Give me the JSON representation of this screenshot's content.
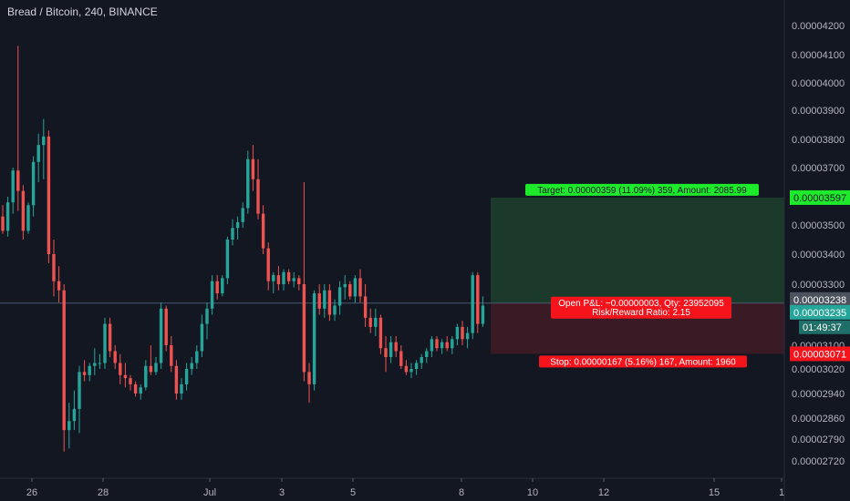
{
  "colors": {
    "background": "#131722",
    "up": "#26a69a",
    "down": "#ef5350",
    "target_zone": "#1b3a2b",
    "stop_zone": "#3a1b25",
    "target_label": "#1eea2c",
    "stop_label": "#f5141c",
    "current_price": "#26a69a",
    "entry_line": "#4a5a70"
  },
  "chart_data": {
    "type": "candlestick",
    "title": "Bread / Bitcoin, 240, BINANCE",
    "xlabel": "",
    "ylabel": "",
    "ylim": [
      2.68e-05,
      4.27e-05
    ],
    "yticks": [
      "0.00004200",
      "0.00004100",
      "0.00004000",
      "0.00003900",
      "0.00003800",
      "0.00003700",
      "0.00003600",
      "0.00003500",
      "0.00003400",
      "0.00003300",
      "0.00003100",
      "0.00003020",
      "0.00002940",
      "0.00002860",
      "0.00002790",
      "0.00002720"
    ],
    "xticks": [
      "26",
      "28",
      "Jul",
      "3",
      "5",
      "8",
      "10",
      "12",
      "15",
      "1"
    ],
    "candles": [
      [
        3.53e-05,
        3.57e-05,
        3.47e-05,
        3.48e-05
      ],
      [
        3.48e-05,
        3.6e-05,
        3.46e-05,
        3.58e-05
      ],
      [
        3.58e-05,
        3.7e-05,
        3.54e-05,
        3.69e-05
      ],
      [
        3.69e-05,
        4.13e-05,
        3.55e-05,
        3.62e-05
      ],
      [
        3.62e-05,
        3.64e-05,
        3.45e-05,
        3.48e-05
      ],
      [
        3.48e-05,
        3.58e-05,
        3.47e-05,
        3.57e-05
      ],
      [
        3.57e-05,
        3.74e-05,
        3.53e-05,
        3.72e-05
      ],
      [
        3.72e-05,
        3.82e-05,
        3.65e-05,
        3.78e-05
      ],
      [
        3.78e-05,
        3.87e-05,
        3.66e-05,
        3.81e-05
      ],
      [
        3.81e-05,
        3.83e-05,
        3.37e-05,
        3.4e-05
      ],
      [
        3.4e-05,
        3.45e-05,
        3.26e-05,
        3.31e-05
      ],
      [
        3.31e-05,
        3.36e-05,
        3.24e-05,
        3.28e-05
      ],
      [
        3.28e-05,
        3.3e-05,
        2.75e-05,
        2.82e-05
      ],
      [
        2.82e-05,
        2.91e-05,
        2.76e-05,
        2.85e-05
      ],
      [
        2.85e-05,
        2.95e-05,
        2.82e-05,
        2.89e-05
      ],
      [
        2.89e-05,
        3.03e-05,
        2.81e-05,
        3.01e-05
      ],
      [
        3.01e-05,
        3.05e-05,
        2.98e-05,
        3e-05
      ],
      [
        3e-05,
        3.04e-05,
        2.98e-05,
        3.03e-05
      ],
      [
        3.03e-05,
        3.09e-05,
        3e-05,
        3.04e-05
      ],
      [
        3.04e-05,
        3.07e-05,
        3.02e-05,
        3.04e-05
      ],
      [
        3.04e-05,
        3.19e-05,
        3.02e-05,
        3.17e-05
      ],
      [
        3.17e-05,
        3.19e-05,
        3.06e-05,
        3.08e-05
      ],
      [
        3.08e-05,
        3.1e-05,
        3.02e-05,
        3.04e-05
      ],
      [
        3.04e-05,
        3.07e-05,
        2.97e-05,
        3e-05
      ],
      [
        3e-05,
        3.04e-05,
        2.96e-05,
        2.99e-05
      ],
      [
        2.99e-05,
        3e-05,
        2.95e-05,
        2.97e-05
      ],
      [
        2.97e-05,
        2.98e-05,
        2.93e-05,
        2.94e-05
      ],
      [
        2.94e-05,
        2.97e-05,
        2.92e-05,
        2.96e-05
      ],
      [
        2.96e-05,
        3.05e-05,
        2.95e-05,
        3.03e-05
      ],
      [
        3.03e-05,
        3.1e-05,
        3e-05,
        3.01e-05
      ],
      [
        3.01e-05,
        3.06e-05,
        3e-05,
        3.04e-05
      ],
      [
        3.04e-05,
        3.24e-05,
        3.02e-05,
        3.22e-05
      ],
      [
        3.22e-05,
        3.23e-05,
        3.08e-05,
        3.1e-05
      ],
      [
        3.1e-05,
        3.13e-05,
        3.01e-05,
        3.03e-05
      ],
      [
        3.03e-05,
        3.05e-05,
        2.92e-05,
        2.94e-05
      ],
      [
        2.94e-05,
        2.99e-05,
        2.92e-05,
        2.97e-05
      ],
      [
        2.97e-05,
        3.04e-05,
        2.95e-05,
        3.02e-05
      ],
      [
        3.02e-05,
        3.06e-05,
        3e-05,
        3.04e-05
      ],
      [
        3.04e-05,
        3.1e-05,
        3.02e-05,
        3.08e-05
      ],
      [
        3.08e-05,
        3.2e-05,
        3.06e-05,
        3.17e-05
      ],
      [
        3.17e-05,
        3.24e-05,
        3.12e-05,
        3.22e-05
      ],
      [
        3.22e-05,
        3.33e-05,
        3.2e-05,
        3.31e-05
      ],
      [
        3.31e-05,
        3.33e-05,
        3.25e-05,
        3.27e-05
      ],
      [
        3.27e-05,
        3.33e-05,
        3.26e-05,
        3.32e-05
      ],
      [
        3.32e-05,
        3.46e-05,
        3.3e-05,
        3.45e-05
      ],
      [
        3.45e-05,
        3.52e-05,
        3.43e-05,
        3.49e-05
      ],
      [
        3.49e-05,
        3.53e-05,
        3.45e-05,
        3.51e-05
      ],
      [
        3.51e-05,
        3.58e-05,
        3.49e-05,
        3.56e-05
      ],
      [
        3.56e-05,
        3.76e-05,
        3.54e-05,
        3.73e-05
      ],
      [
        3.73e-05,
        3.78e-05,
        3.62e-05,
        3.66e-05
      ],
      [
        3.66e-05,
        3.73e-05,
        3.52e-05,
        3.54e-05
      ],
      [
        3.54e-05,
        3.57e-05,
        3.4e-05,
        3.42e-05
      ],
      [
        3.42e-05,
        3.44e-05,
        3.28e-05,
        3.31e-05
      ],
      [
        3.31e-05,
        3.34e-05,
        3.27e-05,
        3.33e-05
      ],
      [
        3.33e-05,
        3.36e-05,
        3.28e-05,
        3.3e-05
      ],
      [
        3.3e-05,
        3.35e-05,
        3.28e-05,
        3.34e-05
      ],
      [
        3.34e-05,
        3.35e-05,
        3.3e-05,
        3.31e-05
      ],
      [
        3.31e-05,
        3.34e-05,
        3.29e-05,
        3.32e-05
      ],
      [
        3.32e-05,
        3.33e-05,
        3.28e-05,
        3.3e-05
      ],
      [
        3.3e-05,
        3.65e-05,
        2.98e-05,
        3.01e-05
      ],
      [
        3.01e-05,
        3.04e-05,
        2.91e-05,
        2.97e-05
      ],
      [
        2.97e-05,
        3.28e-05,
        2.95e-05,
        3.27e-05
      ],
      [
        3.27e-05,
        3.3e-05,
        3.2e-05,
        3.22e-05
      ],
      [
        3.22e-05,
        3.3e-05,
        3.19e-05,
        3.28e-05
      ],
      [
        3.28e-05,
        3.3e-05,
        3.18e-05,
        3.2e-05
      ],
      [
        3.2e-05,
        3.25e-05,
        3.18e-05,
        3.23e-05
      ],
      [
        3.23e-05,
        3.31e-05,
        3.2e-05,
        3.29e-05
      ],
      [
        3.29e-05,
        3.33e-05,
        3.25e-05,
        3.3e-05
      ],
      [
        3.3e-05,
        3.31e-05,
        3.25e-05,
        3.26e-05
      ],
      [
        3.26e-05,
        3.33e-05,
        3.24e-05,
        3.32e-05
      ],
      [
        3.32e-05,
        3.35e-05,
        3.24e-05,
        3.26e-05
      ],
      [
        3.26e-05,
        3.3e-05,
        3.16e-05,
        3.19e-05
      ],
      [
        3.19e-05,
        3.22e-05,
        3.14e-05,
        3.16e-05
      ],
      [
        3.16e-05,
        3.22e-05,
        3.13e-05,
        3.19e-05
      ],
      [
        3.19e-05,
        3.2e-05,
        3.07e-05,
        3.09e-05
      ],
      [
        3.09e-05,
        3.13e-05,
        3.01e-05,
        3.06e-05
      ],
      [
        3.06e-05,
        3.13e-05,
        3.04e-05,
        3.11e-05
      ],
      [
        3.11e-05,
        3.13e-05,
        3.06e-05,
        3.08e-05
      ],
      [
        3.08e-05,
        3.1e-05,
        3.02e-05,
        3.03e-05
      ],
      [
        3.03e-05,
        3.05e-05,
        3e-05,
        3.01e-05
      ],
      [
        3.01e-05,
        3.04e-05,
        2.99e-05,
        3.02e-05
      ],
      [
        3.02e-05,
        3.05e-05,
        3e-05,
        3.04e-05
      ],
      [
        3.04e-05,
        3.07e-05,
        3.02e-05,
        3.06e-05
      ],
      [
        3.06e-05,
        3.09e-05,
        3.04e-05,
        3.08e-05
      ],
      [
        3.08e-05,
        3.13e-05,
        3.06e-05,
        3.12e-05
      ],
      [
        3.12e-05,
        3.13e-05,
        3.08e-05,
        3.09e-05
      ],
      [
        3.09e-05,
        3.12e-05,
        3.07e-05,
        3.11e-05
      ],
      [
        3.11e-05,
        3.13e-05,
        3.08e-05,
        3.09e-05
      ],
      [
        3.09e-05,
        3.13e-05,
        3.07e-05,
        3.12e-05
      ],
      [
        3.12e-05,
        3.17e-05,
        3.1e-05,
        3.16e-05
      ],
      [
        3.16e-05,
        3.18e-05,
        3.1e-05,
        3.12e-05
      ],
      [
        3.12e-05,
        3.16e-05,
        3.09e-05,
        3.14e-05
      ],
      [
        3.14e-05,
        3.34e-05,
        3.12e-05,
        3.33e-05
      ],
      [
        3.33e-05,
        3.34e-05,
        3.14e-05,
        3.17e-05
      ],
      [
        3.17e-05,
        3.26e-05,
        3.16e-05,
        3.23e-05
      ]
    ],
    "position": {
      "target_price": 3.597e-05,
      "entry_price": 3.238e-05,
      "stop_price": 3.071e-05,
      "current_price": 3.235e-05,
      "countdown": "01:49:37"
    },
    "annotations": {
      "target": "Target: 0.00000359 (11.09%) 359, Amount: 2085.99",
      "pnl_line1": "Open P&L: −0.00000003, Qty: 23952095",
      "pnl_line2": "Risk/Reward Ratio: 2.15",
      "stop": "Stop: 0.00000167 (5.16%) 167, Amount: 1960"
    },
    "price_badges": {
      "target": "0.00003597",
      "entry": "0.00003238",
      "current": "0.00003235",
      "stop": "0.00003071"
    }
  }
}
